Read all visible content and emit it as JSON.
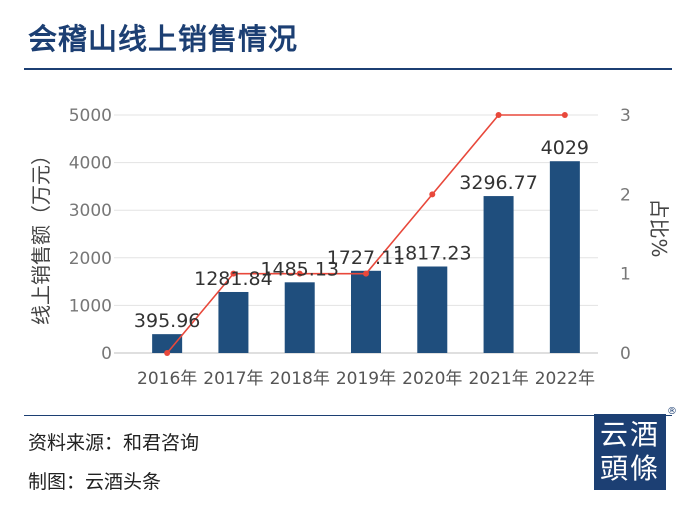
{
  "title": "会稽山线上销售情况",
  "source": "资料来源：和君咨询",
  "credit": "制图：云酒头条",
  "logo": {
    "line1": "云酒",
    "line2": "頭條",
    "mark": "®"
  },
  "chart_data": {
    "type": "bar",
    "title": "",
    "categories": [
      "2016年",
      "2017年",
      "2018年",
      "2019年",
      "2020年",
      "2021年",
      "2022年"
    ],
    "series": [
      {
        "name": "",
        "kind": "bar",
        "axis": "left",
        "values": [
          395.96,
          1281.84,
          1485.13,
          1727.11,
          1817.23,
          3296.77,
          4029
        ],
        "labels": [
          "395.96",
          "1281.84",
          "1485.13",
          "1727.11",
          "1817.23",
          "3296.77",
          "4029"
        ],
        "color": "#1f4e7d"
      },
      {
        "name": "",
        "kind": "line",
        "axis": "right",
        "values": [
          0,
          1,
          1,
          1,
          2,
          3,
          3
        ],
        "color": "#e8483b"
      }
    ],
    "ylabel": "线上销售额（万元）",
    "y2label": "占比%",
    "ylim": [
      0,
      5000
    ],
    "yticks": [
      "0",
      "1000",
      "2000",
      "3000",
      "4000",
      "5000"
    ],
    "y2lim": [
      0,
      3
    ],
    "y2ticks": [
      "0",
      "1",
      "2",
      "3"
    ],
    "grid": true,
    "legend": "none"
  }
}
